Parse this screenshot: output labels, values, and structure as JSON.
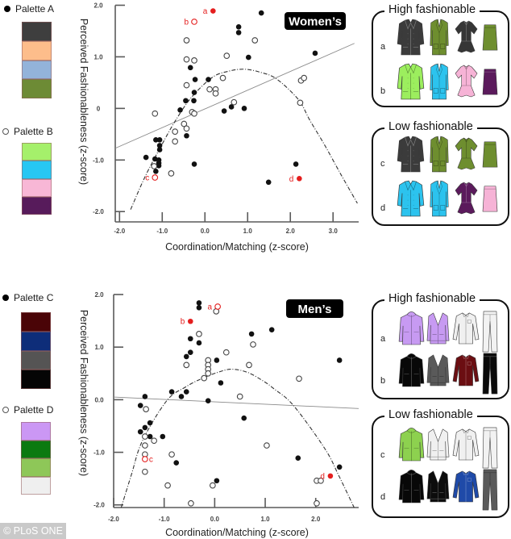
{
  "palettes": [
    {
      "label": "Palette A",
      "marker": "filled",
      "colors": [
        "#3e3e3e",
        "#fdbd8b",
        "#93b3da",
        "#6d8b35"
      ]
    },
    {
      "label": "Palette B",
      "marker": "open",
      "colors": [
        "#a5f06b",
        "#27c7f3",
        "#f8b7d6",
        "#571b5b"
      ]
    },
    {
      "label": "Palette C",
      "marker": "filled",
      "colors": [
        "#4a0407",
        "#0e2d79",
        "#555454",
        "#050505"
      ]
    },
    {
      "label": "Palette D",
      "marker": "open",
      "colors": [
        "#cb97f4",
        "#0b7a10",
        "#8ec758",
        "#efefef"
      ]
    }
  ],
  "chart_data": [
    {
      "type": "scatter",
      "title": "Women’s",
      "xlabel": "Coordination/Matching (z-score)",
      "ylabel": "Perceived Fashionableness (z-score)",
      "xlim": [
        -2.1,
        3.6
      ],
      "ylim": [
        -2.2,
        2.0
      ],
      "grid": false,
      "legend": "left",
      "xticks": [
        {
          "value": -2,
          "label": "-2.0"
        },
        {
          "value": -1,
          "label": "-1.0"
        },
        {
          "value": 0,
          "label": "0.0"
        },
        {
          "value": 1,
          "label": "1.0"
        },
        {
          "value": 2,
          "label": "2.0"
        },
        {
          "value": 3,
          "label": "3.0"
        }
      ],
      "yticks": [
        {
          "value": 2,
          "label": "2.0"
        },
        {
          "value": 1,
          "label": "1.0"
        },
        {
          "value": 0,
          "label": "0"
        },
        {
          "value": -1,
          "label": "-1.0"
        },
        {
          "value": -2,
          "label": "-2.0"
        }
      ],
      "series": [
        {
          "name": "Palette A",
          "marker": "filled",
          "color": "#111111",
          "points": [
            [
              1.32,
              1.85
            ],
            [
              0.79,
              1.58
            ],
            [
              0.79,
              1.47
            ],
            [
              1.02,
              0.99
            ],
            [
              2.58,
              1.07
            ],
            [
              -0.34,
              0.79
            ],
            [
              -0.23,
              0.56
            ],
            [
              0.08,
              0.56
            ],
            [
              -0.25,
              0.31
            ],
            [
              -0.45,
              0.15
            ],
            [
              -0.26,
              0.15
            ],
            [
              -0.58,
              -0.03
            ],
            [
              0.62,
              0.03
            ],
            [
              0.45,
              -0.05
            ],
            [
              0.92,
              0.0
            ],
            [
              -0.43,
              -0.53
            ],
            [
              -1.15,
              -0.61
            ],
            [
              -1.06,
              -0.61
            ],
            [
              -1.06,
              -0.72
            ],
            [
              -1.06,
              -0.8
            ],
            [
              -1.38,
              -0.95
            ],
            [
              -1.17,
              -0.98
            ],
            [
              -1.08,
              -1.0
            ],
            [
              -1.08,
              -1.06
            ],
            [
              -1.08,
              -1.11
            ],
            [
              -1.15,
              -1.22
            ],
            [
              -0.25,
              -1.08
            ],
            [
              2.13,
              -1.08
            ],
            [
              1.49,
              -1.43
            ]
          ]
        },
        {
          "name": "Palette B",
          "marker": "open",
          "color": "#444444",
          "points": [
            [
              -0.43,
              1.32
            ],
            [
              -0.43,
              0.95
            ],
            [
              -0.25,
              0.93
            ],
            [
              0.51,
              1.02
            ],
            [
              1.17,
              1.32
            ],
            [
              0.42,
              0.59
            ],
            [
              -0.43,
              0.45
            ],
            [
              0.11,
              0.37
            ],
            [
              0.25,
              0.37
            ],
            [
              0.25,
              0.29
            ],
            [
              0.68,
              0.12
            ],
            [
              2.25,
              0.54
            ],
            [
              2.32,
              0.59
            ],
            [
              2.23,
              0.11
            ],
            [
              -0.3,
              -0.07
            ],
            [
              -0.25,
              -0.1
            ],
            [
              -1.17,
              -0.1
            ],
            [
              -0.49,
              -0.3
            ],
            [
              -0.43,
              -0.39
            ],
            [
              -0.7,
              -0.45
            ],
            [
              -0.7,
              -0.64
            ],
            [
              -1.19,
              -1.12
            ],
            [
              -0.79,
              -1.26
            ]
          ]
        }
      ],
      "highlighted": [
        {
          "label": "a",
          "series": "Palette A",
          "marker": "filled",
          "x": 0.19,
          "y": 1.89,
          "color": "#e41e1e",
          "label_side": "left"
        },
        {
          "label": "b",
          "series": "Palette B",
          "marker": "open",
          "x": -0.25,
          "y": 1.68,
          "color": "#e41e1e",
          "label_side": "left"
        },
        {
          "label": "c",
          "series": "Palette B",
          "marker": "open",
          "x": -1.17,
          "y": -1.34,
          "color": "#e41e1e",
          "label_side": "left"
        },
        {
          "label": "d",
          "series": "Palette A",
          "marker": "filled",
          "x": 2.21,
          "y": -1.36,
          "color": "#e41e1e",
          "label_side": "left"
        }
      ],
      "fits": [
        {
          "type": "linear",
          "style": "solid",
          "color": "#8a8a8a",
          "slope": 0.363,
          "intercept": -0.01,
          "x_range": [
            -2.1,
            3.5
          ]
        },
        {
          "type": "quadratic",
          "style": "dash-dot",
          "color": "#333333",
          "points": [
            [
              -1.74,
              -1.96
            ],
            [
              -1.4,
              -1.32
            ],
            [
              -1.02,
              -0.72
            ],
            [
              -0.7,
              -0.25
            ],
            [
              -0.32,
              0.21
            ],
            [
              0.17,
              0.6
            ],
            [
              0.55,
              0.72
            ],
            [
              0.92,
              0.76
            ],
            [
              1.3,
              0.7
            ],
            [
              1.68,
              0.57
            ],
            [
              2.19,
              0.17
            ],
            [
              2.45,
              -0.22
            ],
            [
              2.81,
              -0.72
            ],
            [
              3.19,
              -1.29
            ],
            [
              3.57,
              -1.84
            ]
          ]
        }
      ]
    },
    {
      "type": "scatter",
      "title": "Men’s",
      "xlabel": "Coordination/Matching (z-score)",
      "ylabel": "Perceived Fashionableness (z-score)",
      "xlim": [
        -2.0,
        2.85
      ],
      "ylim": [
        -2.05,
        2.0
      ],
      "grid": false,
      "legend": "left",
      "xticks": [
        {
          "value": -2,
          "label": "-2.0"
        },
        {
          "value": -1,
          "label": "-1.0"
        },
        {
          "value": 0,
          "label": "0.0"
        },
        {
          "value": 1,
          "label": "1.0"
        },
        {
          "value": 2,
          "label": "2.0"
        }
      ],
      "yticks": [
        {
          "value": 2,
          "label": "2.0"
        },
        {
          "value": 1,
          "label": "1.0"
        },
        {
          "value": 0,
          "label": "0.0"
        },
        {
          "value": -1,
          "label": "-1.0"
        },
        {
          "value": -2,
          "label": "-2.0"
        }
      ],
      "series": [
        {
          "name": "Palette C",
          "marker": "filled",
          "color": "#111111",
          "points": [
            [
              -0.31,
              1.84
            ],
            [
              -0.31,
              1.75
            ],
            [
              -0.48,
              1.16
            ],
            [
              -0.31,
              1.08
            ],
            [
              -0.48,
              0.9
            ],
            [
              -0.56,
              0.82
            ],
            [
              0.04,
              0.75
            ],
            [
              0.12,
              0.32
            ],
            [
              -0.85,
              0.15
            ],
            [
              -0.56,
              0.15
            ],
            [
              -0.66,
              0.06
            ],
            [
              -1.38,
              0.06
            ],
            [
              -0.13,
              -0.02
            ],
            [
              -1.47,
              -0.11
            ],
            [
              -1.28,
              -0.44
            ],
            [
              -1.38,
              -0.53
            ],
            [
              -1.47,
              -0.61
            ],
            [
              -1.28,
              -0.7
            ],
            [
              -1.03,
              -0.7
            ],
            [
              -0.76,
              -1.2
            ],
            [
              0.04,
              -1.54
            ],
            [
              0.73,
              1.25
            ],
            [
              1.13,
              1.33
            ],
            [
              0.58,
              -0.35
            ],
            [
              1.65,
              -1.11
            ],
            [
              2.47,
              -1.28
            ],
            [
              2.47,
              0.75
            ]
          ]
        },
        {
          "name": "Palette D",
          "marker": "open",
          "color": "#444444",
          "points": [
            [
              0.03,
              1.68
            ],
            [
              -0.31,
              1.25
            ],
            [
              0.23,
              0.9
            ],
            [
              0.76,
              1.05
            ],
            [
              0.68,
              0.66
            ],
            [
              -0.13,
              0.75
            ],
            [
              -0.13,
              0.66
            ],
            [
              -0.13,
              0.58
            ],
            [
              -0.13,
              0.5
            ],
            [
              -0.56,
              0.66
            ],
            [
              -0.21,
              0.41
            ],
            [
              0.5,
              0.06
            ],
            [
              1.67,
              0.4
            ],
            [
              -1.36,
              -0.18
            ],
            [
              -1.38,
              -0.7
            ],
            [
              -1.2,
              -0.78
            ],
            [
              -1.38,
              -0.87
            ],
            [
              -1.38,
              -1.04
            ],
            [
              -0.85,
              -1.04
            ],
            [
              -1.38,
              -1.37
            ],
            [
              -0.93,
              -1.63
            ],
            [
              -0.04,
              -1.63
            ],
            [
              -0.47,
              -1.97
            ],
            [
              1.03,
              -0.87
            ],
            [
              2.02,
              -1.54
            ],
            [
              2.1,
              -1.54
            ],
            [
              2.02,
              -1.97
            ]
          ]
        }
      ],
      "highlighted": [
        {
          "label": "a",
          "series": "Palette D",
          "marker": "open",
          "x": 0.06,
          "y": 1.77,
          "color": "#e41e1e",
          "label_side": "left"
        },
        {
          "label": "b",
          "series": "Palette C",
          "marker": "filled",
          "x": -0.48,
          "y": 1.49,
          "color": "#e41e1e",
          "label_side": "left"
        },
        {
          "label": "c",
          "series": "Palette D",
          "marker": "open",
          "x": -1.38,
          "y": -1.13,
          "color": "#e41e1e",
          "label_side": "right"
        },
        {
          "label": "d",
          "series": "Palette C",
          "marker": "filled",
          "x": 2.29,
          "y": -1.45,
          "color": "#e41e1e",
          "label_side": "left"
        }
      ],
      "fits": [
        {
          "type": "linear",
          "style": "solid",
          "color": "#8a8a8a",
          "slope": -0.045,
          "intercept": -0.04,
          "x_range": [
            -2.0,
            2.85
          ]
        },
        {
          "type": "quadratic",
          "style": "dash-dot",
          "color": "#333333",
          "points": [
            [
              -1.85,
              -2.05
            ],
            [
              -1.65,
              -1.43
            ],
            [
              -1.43,
              -0.78
            ],
            [
              -0.95,
              -0.02
            ],
            [
              -0.58,
              0.24
            ],
            [
              -0.26,
              0.4
            ],
            [
              0.06,
              0.52
            ],
            [
              0.33,
              0.58
            ],
            [
              0.65,
              0.52
            ],
            [
              0.97,
              0.35
            ],
            [
              1.17,
              0.21
            ],
            [
              1.56,
              -0.11
            ],
            [
              2.18,
              -0.93
            ],
            [
              2.45,
              -1.43
            ],
            [
              2.76,
              -2.05
            ]
          ]
        }
      ]
    }
  ],
  "panels": [
    {
      "group": "women",
      "title": "High fashionable",
      "rows": [
        {
          "label": "a",
          "items": [
            {
              "type": "peacoat",
              "color": "#3b3b3b"
            },
            {
              "type": "blazer",
              "color": "#6e8e2f"
            },
            {
              "type": "blouse",
              "color": "#363636"
            },
            {
              "type": "skirt",
              "color": "#6e8e2f"
            }
          ]
        },
        {
          "label": "b",
          "items": [
            {
              "type": "peacoat",
              "color": "#9cee5e"
            },
            {
              "type": "blazer",
              "color": "#2cc3ee"
            },
            {
              "type": "blouse",
              "color": "#f6b3d6"
            },
            {
              "type": "skirt",
              "color": "#5b1a5c"
            }
          ]
        }
      ]
    },
    {
      "group": "women",
      "title": "Low fashionable",
      "rows": [
        {
          "label": "c",
          "items": [
            {
              "type": "peacoat",
              "color": "#3b3b3b"
            },
            {
              "type": "blazer",
              "color": "#6e8e2f"
            },
            {
              "type": "blouse",
              "color": "#6e8e2f"
            },
            {
              "type": "skirt",
              "color": "#6e8e2f"
            }
          ]
        },
        {
          "label": "d",
          "items": [
            {
              "type": "peacoat",
              "color": "#2cc3ee"
            },
            {
              "type": "blazer",
              "color": "#2cc3ee"
            },
            {
              "type": "blouse",
              "color": "#5b1a5c"
            },
            {
              "type": "skirt",
              "color": "#f6b3d6"
            }
          ]
        }
      ]
    },
    {
      "group": "men",
      "title": "High fashionable",
      "rows": [
        {
          "label": "a",
          "items": [
            {
              "type": "parka",
              "color": "#c79af2"
            },
            {
              "type": "cardigan",
              "color": "#c79af2"
            },
            {
              "type": "shirt",
              "color": "#f0f0f0"
            },
            {
              "type": "pants",
              "color": "#f2f2f2"
            }
          ]
        },
        {
          "label": "b",
          "items": [
            {
              "type": "parka",
              "color": "#080808"
            },
            {
              "type": "cardigan",
              "color": "#5a5a5a"
            },
            {
              "type": "shirt",
              "color": "#6b0e12"
            },
            {
              "type": "pants",
              "color": "#0a0a0a"
            }
          ]
        }
      ]
    },
    {
      "group": "men",
      "title": "Low fashionable",
      "rows": [
        {
          "label": "c",
          "items": [
            {
              "type": "parka",
              "color": "#8dd14f"
            },
            {
              "type": "cardigan",
              "color": "#f0f0f0"
            },
            {
              "type": "shirt",
              "color": "#f0f0f0"
            },
            {
              "type": "pants",
              "color": "#f2f2f2"
            }
          ]
        },
        {
          "label": "d",
          "items": [
            {
              "type": "parka",
              "color": "#080808"
            },
            {
              "type": "cardigan",
              "color": "#0c0c0c"
            },
            {
              "type": "shirt",
              "color": "#1f4aa8"
            },
            {
              "type": "pants",
              "color": "#5a5a5a"
            }
          ]
        }
      ]
    }
  ],
  "watermark": "© PLoS ONE"
}
